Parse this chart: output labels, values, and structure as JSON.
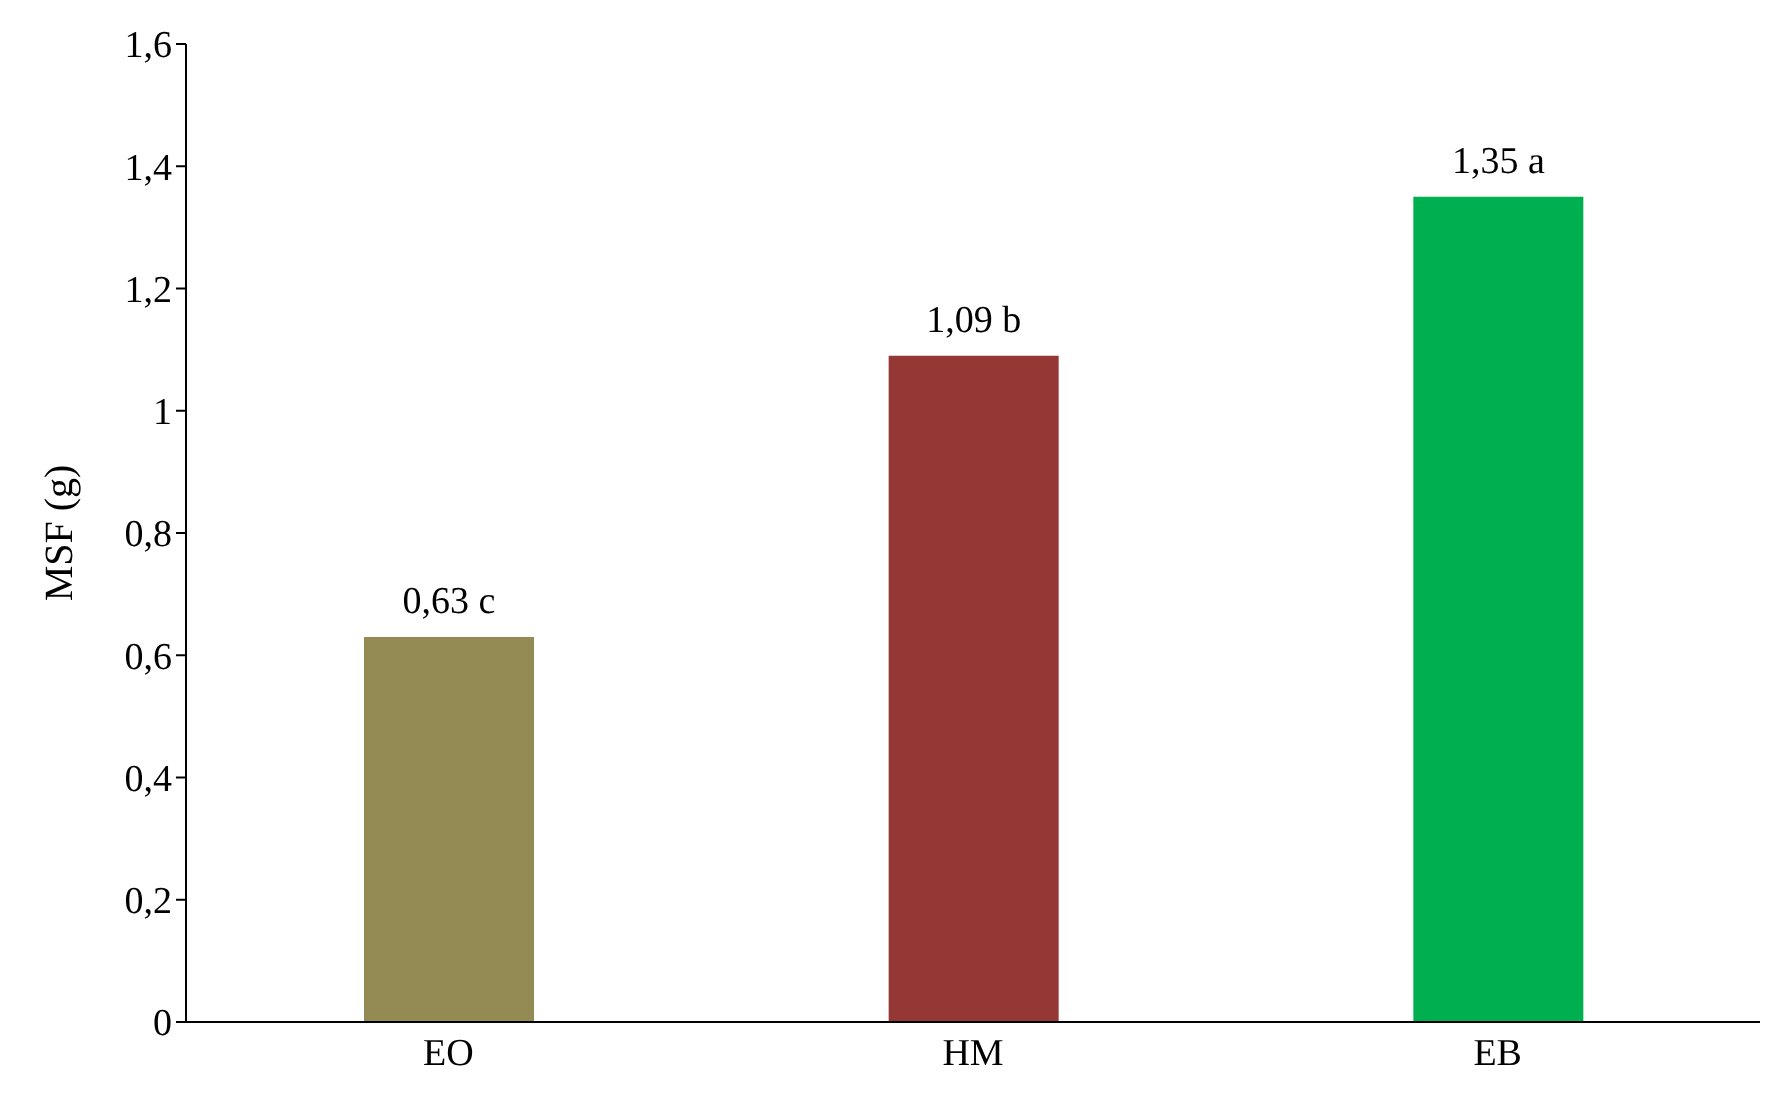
{
  "chart_data": {
    "type": "bar",
    "ylabel": "MSF (g)",
    "categories": [
      "EO",
      "HM",
      "EB"
    ],
    "values": [
      0.63,
      1.09,
      1.35
    ],
    "colors": [
      "#948a54",
      "#953735",
      "#00b050"
    ],
    "value_labels": [
      "0,63 c",
      "1,09 b",
      "1,35 a"
    ],
    "ylim": [
      0,
      1.6
    ],
    "yticks": [
      0,
      {
        "value": 0.2,
        "label": "0,2"
      },
      {
        "value": 0.4,
        "label": "0,4"
      },
      {
        "value": 0.6,
        "label": "0,6"
      },
      {
        "value": 0.8,
        "label": "0,8"
      },
      1,
      {
        "value": 1.2,
        "label": "1,2"
      },
      {
        "value": 1.4,
        "label": "1,4"
      },
      {
        "value": 1.6,
        "label": "1,6"
      }
    ],
    "grid": false,
    "legend": false
  }
}
